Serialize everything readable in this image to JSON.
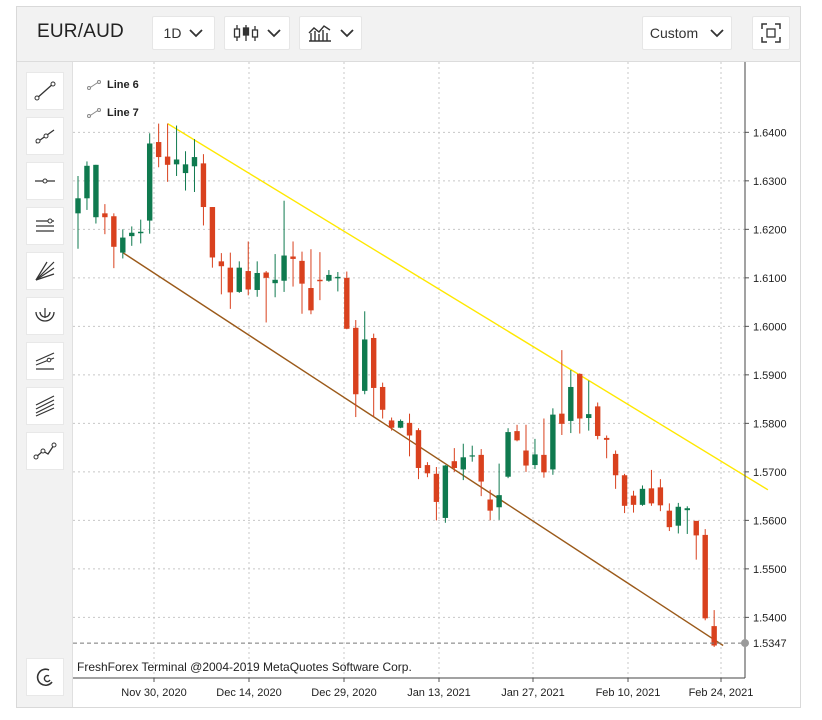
{
  "toolbar": {
    "symbol": "EUR/AUD",
    "timeframe": "1D",
    "range_label": "Custom"
  },
  "drawing_legend": [
    "Line 6",
    "Line 7"
  ],
  "watermark": "FreshForex Terminal @2004-2019 MetaQuotes Software Corp.",
  "colors": {
    "bull": "#0f7a4f",
    "bear": "#d9411e",
    "line6": "#ffe800",
    "line7": "#9b5a1a",
    "grid": "#c8c8c8"
  },
  "left_tools": [
    "trend-line-icon",
    "ray-icon",
    "horizontal-line-icon",
    "channel-icon",
    "fan-icon",
    "arc-icon",
    "pitchfork-icon",
    "fibonacci-icon",
    "zigzag-icon"
  ],
  "chart_data": {
    "type": "candlestick",
    "x_tick_labels": [
      "Nov 30, 2020",
      "Dec 14, 2020",
      "Dec 29, 2020",
      "Jan 13, 2021",
      "Jan 27, 2021",
      "Feb 10, 2021",
      "Feb 24, 2021"
    ],
    "y_tick_labels": [
      "1.6400",
      "1.6300",
      "1.6200",
      "1.6100",
      "1.6000",
      "1.5900",
      "1.5800",
      "1.5700",
      "1.5600",
      "1.5500",
      "1.5400"
    ],
    "y_ticks": [
      1.64,
      1.63,
      1.62,
      1.61,
      1.6,
      1.59,
      1.58,
      1.57,
      1.56,
      1.55,
      1.54
    ],
    "ylim": [
      1.5275,
      1.6545
    ],
    "current_price": 1.5347,
    "current_price_label": "1.5347",
    "candles": [
      [
        1.6233,
        1.6264,
        1.616,
        1.631
      ],
      [
        1.6264,
        1.6331,
        1.624,
        1.634
      ],
      [
        1.6225,
        1.6333,
        1.6212,
        1.6333
      ],
      [
        1.6233,
        1.6225,
        1.619,
        1.6252
      ],
      [
        1.6227,
        1.6164,
        1.612,
        1.6233
      ],
      [
        1.6152,
        1.6183,
        1.614,
        1.62
      ],
      [
        1.6186,
        1.6193,
        1.6166,
        1.6206
      ],
      [
        1.6192,
        1.6195,
        1.6171,
        1.622
      ],
      [
        1.6218,
        1.6377,
        1.6191,
        1.6398
      ],
      [
        1.638,
        1.6349,
        1.6328,
        1.6418
      ],
      [
        1.635,
        1.6333,
        1.6298,
        1.6418
      ],
      [
        1.6334,
        1.6344,
        1.631,
        1.6414
      ],
      [
        1.6316,
        1.6334,
        1.628,
        1.6361
      ],
      [
        1.633,
        1.6349,
        1.6277,
        1.6386
      ],
      [
        1.6336,
        1.6246,
        1.6208,
        1.6355
      ],
      [
        1.6246,
        1.6142,
        1.6121,
        1.6246
      ],
      [
        1.6134,
        1.6124,
        1.6066,
        1.6151
      ],
      [
        1.6121,
        1.607,
        1.6036,
        1.6152
      ],
      [
        1.6071,
        1.6121,
        1.6069,
        1.6134
      ],
      [
        1.6114,
        1.6076,
        1.6064,
        1.6175
      ],
      [
        1.6075,
        1.611,
        1.6061,
        1.6134
      ],
      [
        1.6111,
        1.61,
        1.6008,
        1.6114
      ],
      [
        1.6089,
        1.6096,
        1.606,
        1.6149
      ],
      [
        1.6094,
        1.6146,
        1.6071,
        1.6259
      ],
      [
        1.6144,
        1.6139,
        1.6082,
        1.6175
      ],
      [
        1.6135,
        1.6088,
        1.6026,
        1.6154
      ],
      [
        1.6079,
        1.6033,
        1.6025,
        1.6159
      ],
      [
        1.6096,
        1.6093,
        1.6054,
        1.6153
      ],
      [
        1.6094,
        1.6106,
        1.6092,
        1.6116
      ],
      [
        1.6099,
        1.6102,
        1.6072,
        1.6112
      ],
      [
        1.61,
        1.5995,
        1.5994,
        1.6113
      ],
      [
        1.5997,
        1.586,
        1.5813,
        1.6013
      ],
      [
        1.5867,
        1.5973,
        1.586,
        1.6031
      ],
      [
        1.5976,
        1.5873,
        1.5814,
        1.5985
      ],
      [
        1.5875,
        1.5828,
        1.581,
        1.5884
      ],
      [
        1.5806,
        1.5791,
        1.5785,
        1.5812
      ],
      [
        1.5791,
        1.5805,
        1.579,
        1.5808
      ],
      [
        1.5801,
        1.5775,
        1.5732,
        1.582
      ],
      [
        1.5786,
        1.5708,
        1.5685,
        1.579
      ],
      [
        1.5714,
        1.5697,
        1.5689,
        1.572
      ],
      [
        1.5696,
        1.5638,
        1.56,
        1.571
      ],
      [
        1.5605,
        1.5713,
        1.5595,
        1.5714
      ],
      [
        1.5722,
        1.5708,
        1.57,
        1.5749
      ],
      [
        1.5705,
        1.573,
        1.5683,
        1.5758
      ],
      [
        1.5732,
        1.5734,
        1.5721,
        1.5754
      ],
      [
        1.5735,
        1.568,
        1.565,
        1.5747
      ],
      [
        1.5643,
        1.562,
        1.56,
        1.5663
      ],
      [
        1.5627,
        1.5652,
        1.5601,
        1.5717
      ],
      [
        1.569,
        1.5782,
        1.5687,
        1.579
      ],
      [
        1.5784,
        1.5765,
        1.5763,
        1.5797
      ],
      [
        1.5744,
        1.5713,
        1.57,
        1.5797
      ],
      [
        1.5714,
        1.5736,
        1.5706,
        1.5768
      ],
      [
        1.5735,
        1.5699,
        1.5688,
        1.581
      ],
      [
        1.5705,
        1.5818,
        1.5694,
        1.5831
      ],
      [
        1.582,
        1.5799,
        1.5776,
        1.5951
      ],
      [
        1.5805,
        1.5875,
        1.578,
        1.591
      ],
      [
        1.5902,
        1.581,
        1.5779,
        1.5903
      ],
      [
        1.5811,
        1.5819,
        1.5785,
        1.5888
      ],
      [
        1.5835,
        1.5774,
        1.5767,
        1.5843
      ],
      [
        1.577,
        1.5766,
        1.5728,
        1.5775
      ],
      [
        1.5737,
        1.5693,
        1.5665,
        1.5744
      ],
      [
        1.5693,
        1.563,
        1.5615,
        1.5696
      ],
      [
        1.5651,
        1.5632,
        1.5616,
        1.5661
      ],
      [
        1.5632,
        1.5665,
        1.563,
        1.5672
      ],
      [
        1.5666,
        1.5635,
        1.563,
        1.5704
      ],
      [
        1.5668,
        1.5631,
        1.5619,
        1.5685
      ],
      [
        1.562,
        1.5586,
        1.5578,
        1.5635
      ],
      [
        1.5589,
        1.5628,
        1.5573,
        1.5636
      ],
      [
        1.5621,
        1.5625,
        1.5572,
        1.5629
      ],
      [
        1.5599,
        1.5569,
        1.5519,
        1.5598
      ],
      [
        1.557,
        1.5398,
        1.5394,
        1.5582
      ],
      [
        1.5382,
        1.5342,
        1.5339,
        1.5415
      ]
    ],
    "trend_lines": [
      {
        "name": "Line 6",
        "from_candle": 10,
        "from_price": 1.6418,
        "to_candle": 77,
        "to_price": 1.5663
      },
      {
        "name": "Line 7",
        "from_candle": 5,
        "from_price": 1.6152,
        "to_candle": 72,
        "to_price": 1.5342
      }
    ]
  }
}
